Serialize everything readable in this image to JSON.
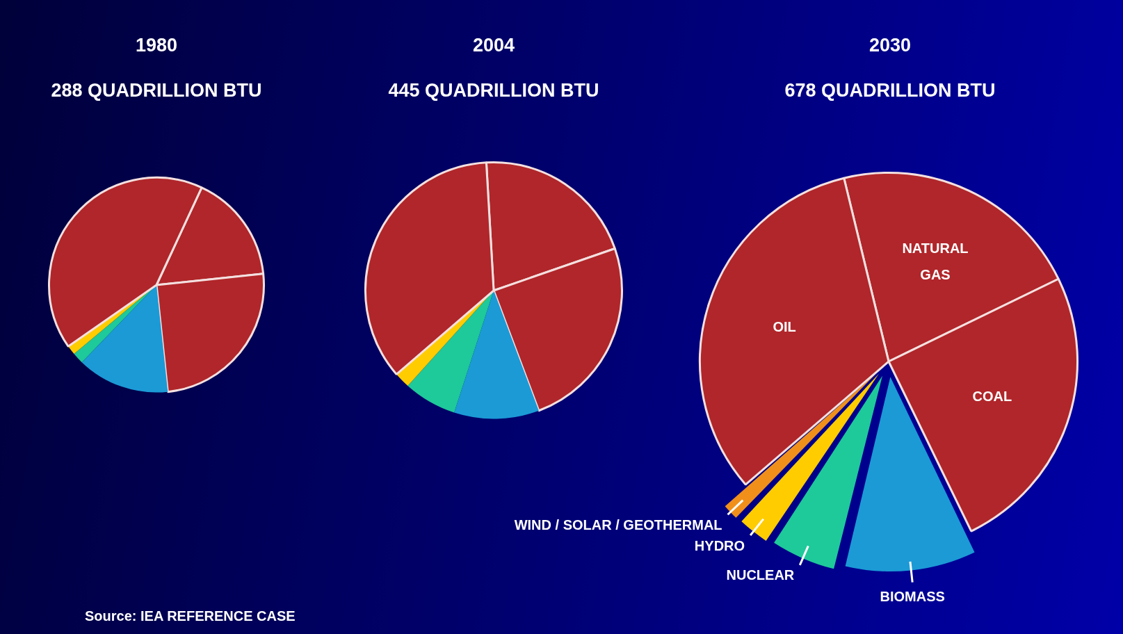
{
  "chart_data": [
    {
      "type": "pie",
      "title": "1980",
      "subtitle": "288 QUADRILLION BTU",
      "categories": [
        null,
        null,
        null,
        null,
        null,
        null,
        null
      ],
      "values": [
        16.4,
        25,
        13.9,
        1.7,
        1.4,
        0,
        41.6
      ],
      "colors": [
        "#b0262a",
        "#b0262a",
        "#1b9ad6",
        "#1ec99a",
        "#ffcc00",
        "#f0901a",
        "#b0262a"
      ],
      "legend": false,
      "annotations": [
        "Source: IEA REFERENCE CASE"
      ]
    },
    {
      "type": "pie",
      "title": "2004",
      "subtitle": "445 QUADRILLION BTU",
      "categories": [
        null,
        null,
        null,
        null,
        null,
        null,
        null
      ],
      "values": [
        20.6,
        24.6,
        10.7,
        6.7,
        2.0,
        null,
        35.4
      ],
      "colors": [
        "#b0262a",
        "#b0262a",
        "#1b9ad6",
        "#1ec99a",
        "#ffcc00",
        "#f0901a",
        "#b0262a"
      ],
      "legend": false
    },
    {
      "type": "pie",
      "title": "2030",
      "subtitle": "678 QUADRILLION BTU",
      "categories": [
        "NATURAL GAS",
        "COAL",
        "BIOMASS",
        "NUCLEAR",
        "HYDRO",
        "WIND / SOLAR / GEOTHERMAL",
        "OIL"
      ],
      "values": [
        21.6,
        25,
        11,
        5.5,
        2.8,
        1.6,
        32.5
      ],
      "colors": [
        "#b0262a",
        "#b0262a",
        "#1b9ad6",
        "#1ec99a",
        "#ffcc00",
        "#f0901a",
        "#b0262a"
      ],
      "legend": false
    }
  ]
}
